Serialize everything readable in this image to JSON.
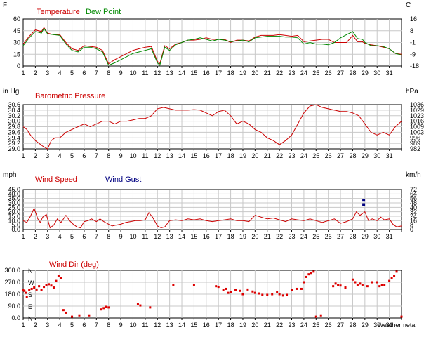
{
  "chart_data": [
    {
      "type": "line",
      "left_unit": "F",
      "right_unit": "C",
      "legend": [
        {
          "label": "Temperature",
          "color": "#cc0000"
        },
        {
          "label": "Dew Point",
          "color": "#008800"
        }
      ],
      "yticks_left": [
        "60",
        "45",
        "30",
        "15",
        "0"
      ],
      "ylim": [
        0,
        60
      ],
      "yticks_right": [
        "16",
        "8",
        "-1",
        "-9",
        "-18"
      ],
      "x_ticks": [
        "1",
        "2",
        "3",
        "4",
        "5",
        "6",
        "7",
        "8",
        "9",
        "10",
        "11",
        "12",
        "13",
        "14",
        "15",
        "16",
        "17",
        "18",
        "19",
        "20",
        "21",
        "22",
        "23",
        "24",
        "25",
        "26",
        "27",
        "28",
        "29",
        "30",
        "31"
      ],
      "series": [
        {
          "name": "Temperature",
          "color": "#cc0000",
          "x": [
            1,
            1.5,
            2,
            2.5,
            2.7,
            3,
            3.5,
            4,
            4.5,
            5,
            5.5,
            6,
            6.5,
            7,
            7.5,
            8,
            8.5,
            9,
            9.5,
            10,
            10.5,
            11,
            11.5,
            12,
            12.2,
            12.6,
            13,
            13.5,
            14,
            14.5,
            15,
            15.5,
            16,
            16.5,
            17,
            17.5,
            18,
            18.5,
            19,
            19.5,
            20,
            20.5,
            21,
            21.5,
            22,
            22.5,
            23,
            23.5,
            24,
            24.5,
            25,
            25.5,
            26,
            26.5,
            27,
            27.5,
            28,
            28.4,
            28.8,
            29,
            29.5,
            30,
            30.5,
            31,
            31.5,
            32
          ],
          "y": [
            28,
            38,
            46,
            44,
            49,
            42,
            40,
            40,
            30,
            22,
            20,
            26,
            25,
            24,
            20,
            3,
            8,
            12,
            16,
            20,
            22,
            24,
            25,
            6,
            3,
            26,
            22,
            28,
            30,
            33,
            33,
            34,
            36,
            34,
            34,
            34,
            30,
            33,
            33,
            32,
            37,
            39,
            39,
            39,
            40,
            39,
            38,
            39,
            31,
            32,
            33,
            34,
            34,
            30,
            30,
            30,
            39,
            31,
            31,
            29,
            27,
            26,
            24,
            22,
            16,
            15
          ]
        },
        {
          "name": "Dew Point",
          "color": "#008800",
          "x": [
            1,
            1.5,
            2,
            2.5,
            2.7,
            3,
            3.5,
            4,
            4.5,
            5,
            5.5,
            6,
            6.5,
            7,
            7.5,
            8,
            8.5,
            9,
            9.5,
            10,
            10.5,
            11,
            11.5,
            12,
            12.2,
            12.6,
            13,
            13.5,
            14,
            14.5,
            15,
            15.5,
            16,
            16.5,
            17,
            17.5,
            18,
            18.5,
            19,
            19.5,
            20,
            20.5,
            21,
            21.5,
            22,
            22.5,
            23,
            23.5,
            24,
            24.5,
            25,
            25.5,
            26,
            26.5,
            27,
            27.5,
            28,
            28.4,
            28.8,
            29,
            29.5,
            30,
            30.5,
            31,
            31.5,
            32
          ],
          "y": [
            26,
            36,
            44,
            42,
            48,
            41,
            40,
            39,
            28,
            20,
            18,
            24,
            24,
            22,
            18,
            1,
            4,
            8,
            12,
            16,
            18,
            20,
            22,
            4,
            1,
            24,
            20,
            27,
            30,
            33,
            34,
            36,
            34,
            32,
            34,
            33,
            31,
            32,
            33,
            31,
            36,
            37,
            38,
            38,
            38,
            37,
            37,
            36,
            28,
            30,
            28,
            28,
            27,
            30,
            36,
            40,
            44,
            35,
            34,
            30,
            26,
            26,
            25,
            22,
            16,
            14
          ]
        }
      ]
    },
    {
      "type": "line",
      "title": "Barometric Pressure",
      "left_unit": "in Hg",
      "right_unit": "hPa",
      "yticks_left": [
        "30.6",
        "30.4",
        "30.2",
        "30.0",
        "29.8",
        "29.6",
        "29.4",
        "29.2",
        "29.0"
      ],
      "ylim": [
        29.0,
        30.6
      ],
      "yticks_right": [
        "1036",
        "1029",
        "1023",
        "1016",
        "1009",
        "1003",
        "996",
        "989",
        "982"
      ],
      "series": [
        {
          "name": "Barometric Pressure",
          "color": "#cc0000",
          "x": [
            1,
            1.3,
            1.6,
            2,
            2.3,
            2.6,
            3,
            3.3,
            3.6,
            4,
            4.5,
            5,
            5.5,
            6,
            6.5,
            7,
            7.5,
            8,
            8.5,
            9,
            9.5,
            10,
            10.5,
            11,
            11.5,
            12,
            12.5,
            13,
            13.5,
            14,
            14.5,
            15,
            15.5,
            16,
            16.5,
            17,
            17.5,
            18,
            18.5,
            19,
            19.5,
            20,
            20.5,
            21,
            21.5,
            22,
            22.5,
            23,
            23.5,
            24,
            24.5,
            25,
            25.5,
            26,
            26.5,
            27,
            27.5,
            28,
            28.5,
            29,
            29.5,
            30,
            30.5,
            31,
            31.5,
            32
          ],
          "y": [
            29.8,
            29.7,
            29.5,
            29.3,
            29.2,
            29.1,
            29.0,
            29.3,
            29.4,
            29.4,
            29.6,
            29.7,
            29.8,
            29.9,
            29.8,
            29.9,
            30.0,
            30.0,
            29.9,
            30.0,
            30.0,
            30.05,
            30.1,
            30.1,
            30.2,
            30.45,
            30.5,
            30.45,
            30.4,
            30.4,
            30.4,
            30.42,
            30.4,
            30.3,
            30.2,
            30.35,
            30.4,
            30.2,
            29.9,
            30.0,
            29.9,
            29.7,
            29.6,
            29.4,
            29.3,
            29.15,
            29.3,
            29.5,
            29.9,
            30.3,
            30.55,
            30.6,
            30.5,
            30.45,
            30.4,
            30.35,
            30.35,
            30.3,
            30.2,
            29.9,
            29.6,
            29.5,
            29.6,
            29.5,
            29.8,
            30.0
          ]
        }
      ]
    },
    {
      "type": "line",
      "left_unit": "mph",
      "right_unit": "km/h",
      "legend": [
        {
          "label": "Wind Speed",
          "color": "#cc0000"
        },
        {
          "label": "Wind Gust",
          "color": "#000080"
        }
      ],
      "yticks_left": [
        "45.0",
        "40.0",
        "35.0",
        "30.0",
        "25.0",
        "20.0",
        "15.0",
        "10.0",
        "5.0",
        "0.0"
      ],
      "ylim": [
        0,
        45
      ],
      "yticks_right": [
        "72",
        "64",
        "56",
        "48",
        "40",
        "32",
        "24",
        "16",
        "8",
        "0"
      ],
      "series": [
        {
          "name": "Wind Speed",
          "color": "#cc0000",
          "x": [
            1,
            1.3,
            1.6,
            1.9,
            2.2,
            2.4,
            2.6,
            2.9,
            3.2,
            3.5,
            3.8,
            4.1,
            4.5,
            4.8,
            5.1,
            5.4,
            5.7,
            6,
            6.3,
            6.6,
            7,
            7.3,
            7.6,
            8,
            8.3,
            8.6,
            9,
            9.4,
            9.8,
            10.2,
            10.6,
            11,
            11.3,
            11.6,
            12,
            12.3,
            12.6,
            13,
            13.5,
            14,
            14.5,
            15,
            15.5,
            16,
            16.5,
            17,
            17.5,
            18,
            18.5,
            19,
            19.5,
            20,
            20.5,
            21,
            21.5,
            22,
            22.5,
            23,
            23.5,
            24,
            24.5,
            25,
            25.5,
            26,
            26.5,
            27,
            27.5,
            28,
            28.3,
            28.6,
            29,
            29.3,
            29.6,
            30,
            30.3,
            30.6,
            31,
            31.3,
            31.6,
            32
          ],
          "y": [
            10,
            8,
            15,
            24,
            12,
            8,
            14,
            17,
            2,
            5,
            12,
            8,
            16,
            10,
            6,
            3,
            2,
            9,
            10,
            12,
            9,
            12,
            9,
            6,
            4,
            5,
            6,
            8,
            9,
            10,
            10,
            11,
            19,
            14,
            4,
            2,
            3,
            10,
            11,
            10,
            12,
            11,
            12,
            10,
            9,
            10,
            11,
            12,
            10,
            10,
            9,
            16,
            14,
            12,
            13,
            11,
            9,
            12,
            11,
            10,
            12,
            10,
            8,
            10,
            12,
            7,
            9,
            12,
            20,
            16,
            20,
            10,
            12,
            10,
            14,
            11,
            12,
            6,
            3,
            4
          ]
        },
        {
          "name": "Wind Gust",
          "color": "#000080",
          "x": [
            28.9,
            28.9
          ],
          "y": [
            28,
            33
          ]
        }
      ]
    },
    {
      "type": "scatter",
      "title": "Wind Dir (deg)",
      "yticks_left": [
        "360.0",
        "270.0",
        "180.0",
        "90.0",
        "0.0"
      ],
      "ylim": [
        0,
        360
      ],
      "cardinal": [
        "N",
        "W",
        "S",
        "E",
        "N"
      ],
      "footer_label": "Weathermetar",
      "series": [
        {
          "name": "Wind Dir (deg)",
          "color": "#dd0000",
          "x": [
            1,
            1.1,
            1.2,
            1.3,
            1.5,
            1.7,
            1.9,
            2.1,
            2.3,
            2.5,
            2.7,
            2.9,
            3.1,
            3.3,
            3.5,
            3.7,
            3.9,
            4.1,
            4.3,
            4.5,
            5,
            5.6,
            6.4,
            7.4,
            7.6,
            7.8,
            8,
            10.4,
            10.6,
            11.4,
            13.3,
            15,
            16.8,
            17,
            17.4,
            17.6,
            17.8,
            18,
            18.4,
            18.8,
            19,
            19.4,
            19.8,
            20,
            20.3,
            20.6,
            21,
            21.4,
            21.8,
            22,
            22.3,
            22.6,
            23,
            23.4,
            23.8,
            24,
            24.2,
            24.4,
            24.6,
            24.8,
            25,
            25.4,
            26.4,
            26.6,
            26.8,
            27,
            27.4,
            28,
            28.2,
            28.4,
            28.6,
            28.8,
            29.2,
            29.6,
            30,
            30.2,
            30.4,
            30.6,
            31,
            31.2,
            31.4,
            31.6,
            32
          ],
          "y": [
            210,
            205,
            190,
            160,
            210,
            220,
            230,
            215,
            240,
            210,
            235,
            250,
            255,
            245,
            230,
            280,
            320,
            300,
            60,
            40,
            10,
            20,
            20,
            65,
            75,
            85,
            80,
            105,
            95,
            80,
            250,
            250,
            240,
            235,
            210,
            220,
            190,
            195,
            210,
            205,
            180,
            215,
            200,
            190,
            185,
            175,
            175,
            180,
            195,
            180,
            170,
            175,
            210,
            220,
            220,
            270,
            310,
            330,
            340,
            350,
            10,
            20,
            240,
            260,
            250,
            245,
            230,
            290,
            270,
            250,
            260,
            250,
            240,
            270,
            270,
            240,
            250,
            250,
            280,
            300,
            320,
            350,
            10
          ]
        }
      ]
    }
  ]
}
